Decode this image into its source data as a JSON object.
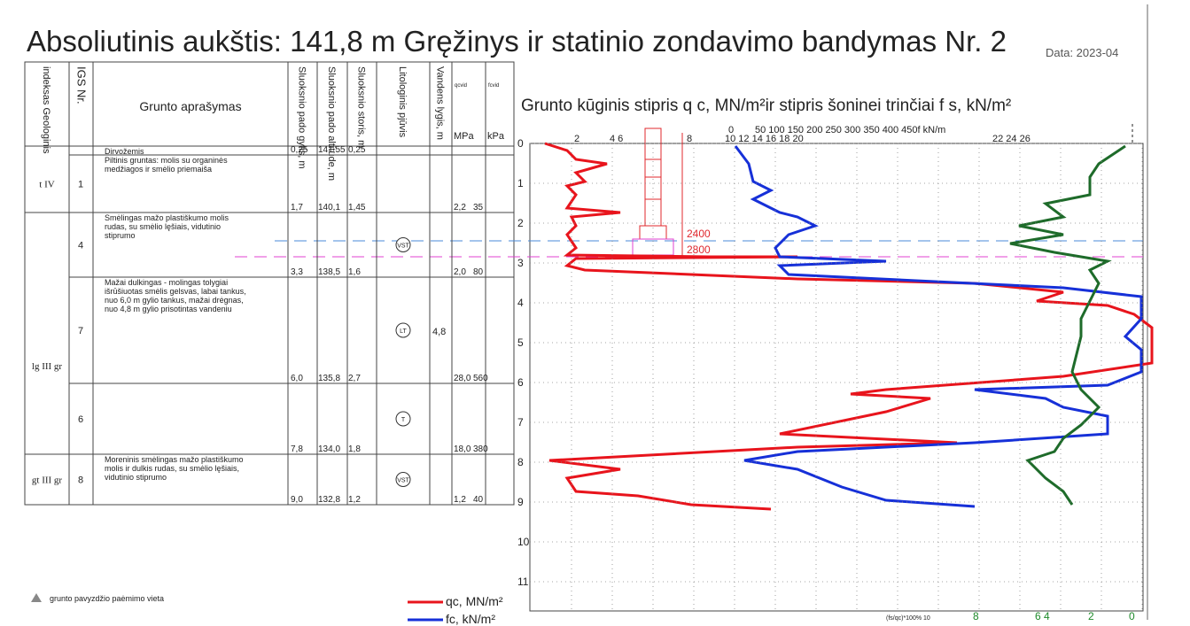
{
  "header": {
    "title": "Absoliutinis aukštis: 141,8 m Gręžinys ir statinio zondavimo bandymas Nr. 2",
    "date": "Data: 2023-04"
  },
  "table": {
    "columns": [
      "indeksas Geologinis",
      "IGS Nr.",
      "Grunto aprašymas",
      "Sluoksnio pado gylis, m",
      "Sluoksnio pado altitude, m",
      "Sluoksnio storis, m",
      "Litologinis pjūvis",
      "Vandens lygis, m",
      "qcvid",
      "fcvid"
    ],
    "units": [
      "MPa",
      "kPa"
    ],
    "rows": [
      {
        "description": [
          "Dirvožemis"
        ],
        "depth": "0,25",
        "altitude": "141,55",
        "thickness": "0,25"
      },
      {
        "index": "t IV",
        "igs": "1",
        "description": [
          "Piltinis gruntas: molis su organinės",
          "medžiagos ir smėlio priemaiša"
        ],
        "depth": "1,7",
        "altitude": "140,1",
        "thickness": "1,45",
        "q": "2,2",
        "f": "35"
      },
      {
        "igs": "4",
        "description": [
          "Smėlingas mažo plastiškumo molis",
          "rudas, su smėlio lęšiais, vidutinio",
          "stiprumo"
        ],
        "depth": "3,3",
        "altitude": "138,5",
        "thickness": "1,6",
        "q": "2,0",
        "f": "80",
        "symbol": "VST"
      },
      {
        "index": "lg III gr",
        "igs": "7",
        "description": [
          "Mažai dulkingas - molingas tolygiai",
          "išrūšiuotas smėlis gelsvas, labai tankus,",
          "nuo 6,0 m gylio tankus, mažai drėgnas,",
          "nuo 4,8 m gylio prisotintas vandeniu"
        ],
        "depth": "6,0",
        "altitude": "135,8",
        "thickness": "2,7",
        "q": "28,0",
        "f": "560",
        "symbol": "LT",
        "water": "4,8"
      },
      {
        "igs": "6",
        "description": [],
        "depth": "7,8",
        "altitude": "134,0",
        "thickness": "1,8",
        "q": "18,0",
        "f": "380",
        "symbol": "T"
      },
      {
        "index": "gt III gr",
        "igs": "8",
        "description": [
          "Moreninis smėlingas mažo plastiškumo",
          "molis ir dulkis rudas, su smėlio lęšiais,",
          "vidutinio stiprumo"
        ],
        "depth": "9,0",
        "altitude": "132,8",
        "thickness": "1,2",
        "q": "1,2",
        "f": "40",
        "symbol": "VST"
      }
    ]
  },
  "chart": {
    "title": "Grunto kūginis stipris q c, MN/m²ir stipris šoninei trinčiai f s, kN/m²",
    "qc_scale": [
      "2",
      "4 6",
      "8",
      "10 12 14 16 18 20",
      "22 24 26"
    ],
    "fs_scale": [
      "0",
      "50 100 150 200 250 300 350 400 450f kN/m"
    ],
    "depth_ticks": [
      0,
      1,
      2,
      3,
      4,
      5,
      6,
      7,
      8,
      9,
      10,
      11
    ],
    "pile_labels": [
      "2400",
      "2800"
    ],
    "ratio_label": "(fs/qc)*100% 10",
    "ratio_scale": [
      "8",
      "6 4",
      "2",
      "0"
    ]
  },
  "legend": {
    "qc": "qc, MN/m²",
    "fs": "fc, kN/m²"
  },
  "note": "grunto pavyzdžio paėmimo vieta"
}
